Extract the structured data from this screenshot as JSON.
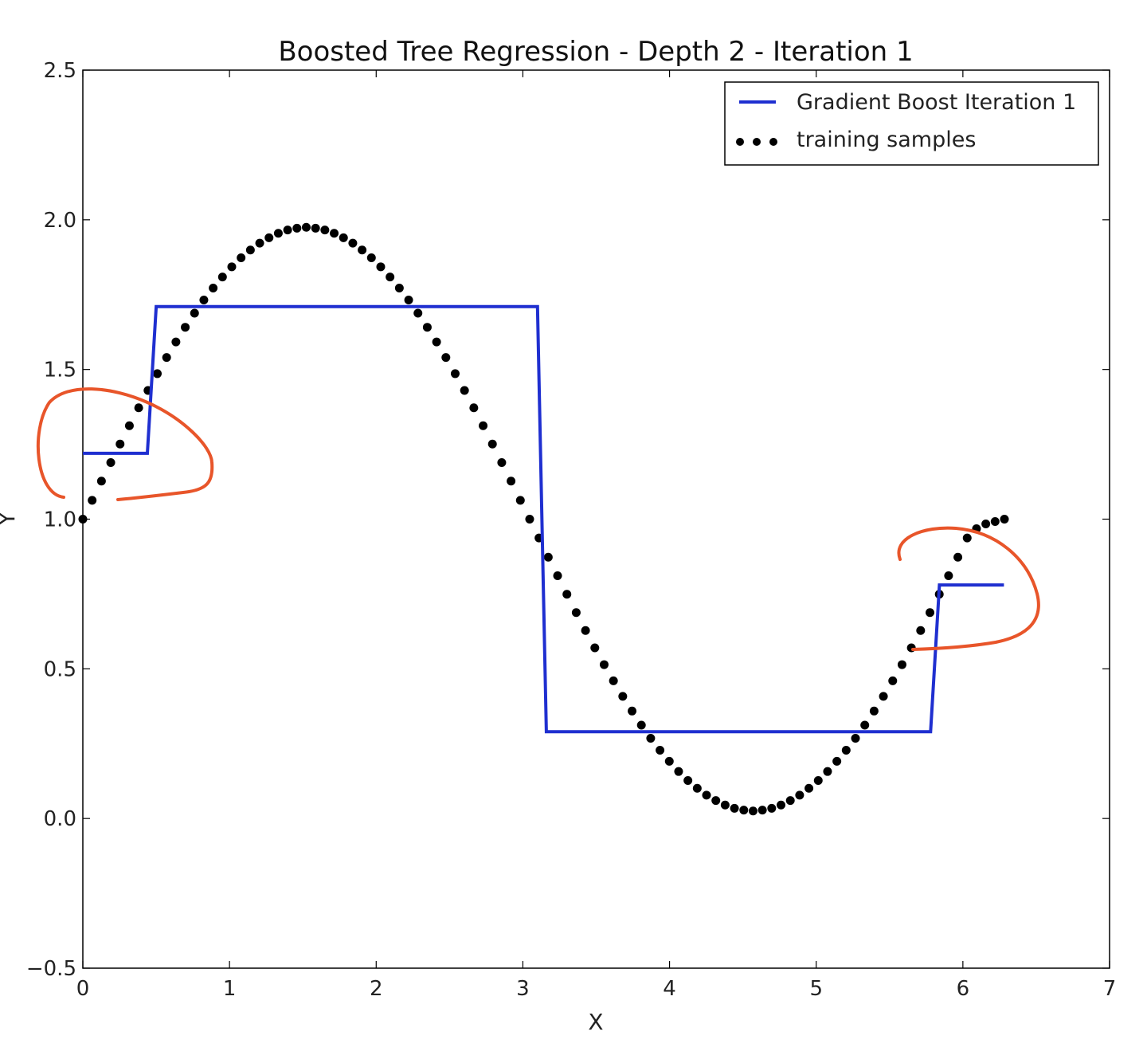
{
  "chart_data": {
    "type": "line",
    "title": "Boosted Tree Regression - Depth 2 - Iteration 1",
    "xlabel": "X",
    "ylabel": "Y",
    "xlim": [
      0,
      7
    ],
    "ylim": [
      -0.5,
      2.5
    ],
    "xticks": [
      0,
      1,
      2,
      3,
      4,
      5,
      6,
      7
    ],
    "xtick_labels": [
      "0",
      "1",
      "2",
      "3",
      "4",
      "5",
      "6",
      "7"
    ],
    "yticks": [
      -0.5,
      0.0,
      0.5,
      1.0,
      1.5,
      2.0,
      2.5
    ],
    "ytick_labels": [
      "−0.5",
      "0.0",
      "0.5",
      "1.0",
      "1.5",
      "2.0",
      "2.5"
    ],
    "grid": false,
    "legend_position": "top-right",
    "series": [
      {
        "name": "Gradient Boost Iteration 1",
        "style": "step-line",
        "color": "#1f2fd0",
        "x": [
          0.0,
          0.44,
          0.5,
          3.1,
          3.16,
          5.78,
          5.84,
          6.28
        ],
        "y": [
          1.22,
          1.22,
          1.71,
          1.71,
          0.29,
          0.29,
          0.78,
          0.78
        ]
      },
      {
        "name": "training samples",
        "style": "dots",
        "color": "#000000",
        "function_samples": {
          "count": 100,
          "x_start": 0.0,
          "x_end": 6.2832,
          "y": [
            1.0,
            1.063,
            1.127,
            1.189,
            1.251,
            1.312,
            1.372,
            1.43,
            1.486,
            1.54,
            1.592,
            1.641,
            1.688,
            1.732,
            1.772,
            1.809,
            1.843,
            1.873,
            1.899,
            1.922,
            1.94,
            1.955,
            1.966,
            1.972,
            1.975,
            1.972,
            1.966,
            1.955,
            1.94,
            1.922,
            1.899,
            1.873,
            1.843,
            1.809,
            1.772,
            1.732,
            1.688,
            1.641,
            1.592,
            1.54,
            1.486,
            1.43,
            1.372,
            1.312,
            1.251,
            1.189,
            1.127,
            1.063,
            1.0,
            0.937,
            0.873,
            0.811,
            0.749,
            0.688,
            0.628,
            0.57,
            0.514,
            0.46,
            0.408,
            0.359,
            0.312,
            0.268,
            0.228,
            0.191,
            0.157,
            0.127,
            0.101,
            0.078,
            0.06,
            0.045,
            0.034,
            0.028,
            0.025,
            0.028,
            0.034,
            0.045,
            0.06,
            0.078,
            0.101,
            0.127,
            0.157,
            0.191,
            0.228,
            0.268,
            0.312,
            0.359,
            0.408,
            0.46,
            0.514,
            0.57,
            0.628,
            0.688,
            0.749,
            0.811,
            0.873,
            0.937,
            0.968,
            0.984,
            0.992,
            1.0
          ]
        }
      }
    ],
    "annotations": [
      {
        "type": "hand-drawn-circle",
        "color": "#e8552a",
        "around": "left step near x=0-0.5"
      },
      {
        "type": "hand-drawn-circle",
        "color": "#e8552a",
        "around": "right step near x=5.8-6.3"
      }
    ]
  }
}
